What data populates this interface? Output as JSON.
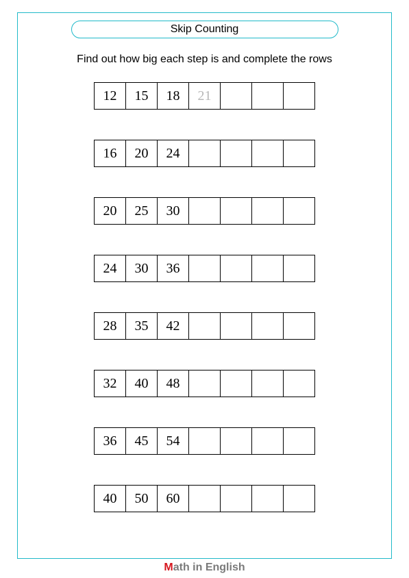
{
  "title": "Skip Counting",
  "instruction": "Find out how big each step is and complete the rows",
  "rows": [
    {
      "cells": [
        "12",
        "15",
        "18",
        "21",
        "",
        "",
        ""
      ],
      "hint_index": 3
    },
    {
      "cells": [
        "16",
        "20",
        "24",
        "",
        "",
        "",
        ""
      ],
      "hint_index": -1
    },
    {
      "cells": [
        "20",
        "25",
        "30",
        "",
        "",
        "",
        ""
      ],
      "hint_index": -1
    },
    {
      "cells": [
        "24",
        "30",
        "36",
        "",
        "",
        "",
        ""
      ],
      "hint_index": -1
    },
    {
      "cells": [
        "28",
        "35",
        "42",
        "",
        "",
        "",
        ""
      ],
      "hint_index": -1
    },
    {
      "cells": [
        "32",
        "40",
        "48",
        "",
        "",
        "",
        ""
      ],
      "hint_index": -1
    },
    {
      "cells": [
        "36",
        "45",
        "54",
        "",
        "",
        "",
        ""
      ],
      "hint_index": -1
    },
    {
      "cells": [
        "40",
        "50",
        "60",
        "",
        "",
        "",
        ""
      ],
      "hint_index": -1
    }
  ],
  "footer": {
    "first_letter": "M",
    "rest": "ath in English"
  },
  "colors": {
    "accent": "#1fb9c9",
    "hint_text": "#b8b8b8",
    "footer_m": "#d6161e",
    "footer_rest": "#7a7a7a",
    "cell_border": "#000000",
    "background": "#ffffff"
  }
}
